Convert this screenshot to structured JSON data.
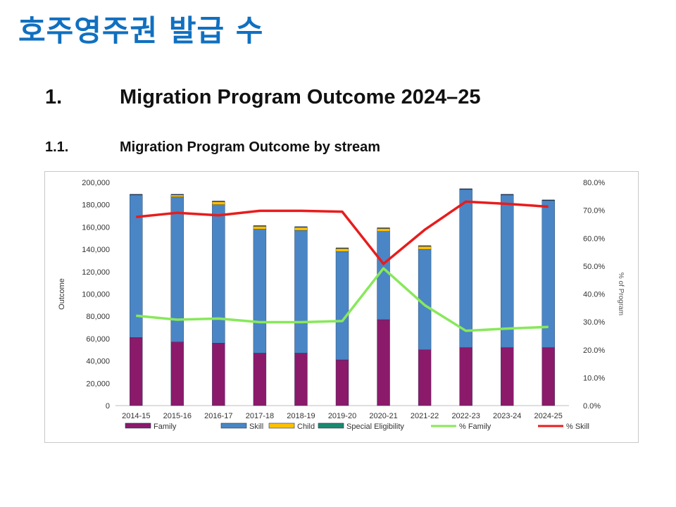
{
  "slide": {
    "title": "호주영주권 발급 수",
    "heading1_num": "1.",
    "heading1_text": "Migration Program Outcome 2024–25",
    "heading2_num": "1.1.",
    "heading2_text": "Migration Program Outcome by stream"
  },
  "chart_data": {
    "type": "bar",
    "stacked": true,
    "title": "Migration Program Outcome by stream",
    "ylabel": "Outcome",
    "y2label": "% of Program",
    "ylim": [
      0,
      200000
    ],
    "y2lim": [
      0,
      80
    ],
    "yticks": [
      "0",
      "20,000",
      "40,000",
      "60,000",
      "80,000",
      "100,000",
      "120,000",
      "140,000",
      "160,000",
      "180,000",
      "200,000"
    ],
    "y2ticks": [
      "0.0%",
      "10.0%",
      "20.0%",
      "30.0%",
      "40.0%",
      "50.0%",
      "60.0%",
      "70.0%",
      "80.0%"
    ],
    "categories": [
      "2014-15",
      "2015-16",
      "2016-17",
      "2017-18",
      "2018-19",
      "2019-20",
      "2020-21",
      "2021-22",
      "2022-23",
      "2023-24",
      "2024-25"
    ],
    "series": [
      {
        "name": "Family",
        "kind": "bar",
        "color": "#8b1a6b",
        "values": [
          61000,
          57000,
          56000,
          47000,
          47000,
          41000,
          77000,
          50000,
          52000,
          52000,
          52000
        ]
      },
      {
        "name": "Skill",
        "kind": "bar",
        "color": "#4a86c5",
        "values": [
          128000,
          130000,
          124000,
          111000,
          110000,
          97000,
          79000,
          90000,
          142000,
          137000,
          132000
        ]
      },
      {
        "name": "Child",
        "kind": "bar",
        "color": "#ffc000",
        "values": [
          0,
          2000,
          3000,
          3000,
          3000,
          3000,
          3000,
          3000,
          0,
          0,
          0
        ]
      },
      {
        "name": "Special Eligibility",
        "kind": "bar",
        "color": "#1a8a6e",
        "values": [
          0,
          0,
          0,
          0,
          0,
          0,
          0,
          0,
          0,
          0,
          0
        ]
      },
      {
        "name": "% Family",
        "kind": "line",
        "axis": "right",
        "color": "#88e85a",
        "values": [
          32.2,
          30.8,
          31.2,
          29.9,
          29.9,
          30.3,
          49.2,
          36.0,
          26.8,
          27.6,
          28.2
        ]
      },
      {
        "name": "% Skill",
        "kind": "line",
        "axis": "right",
        "color": "#e81c1c",
        "values": [
          67.6,
          69.1,
          68.2,
          69.8,
          69.8,
          69.5,
          50.8,
          63.0,
          73.1,
          72.3,
          71.3
        ]
      }
    ],
    "legend": "bottom"
  }
}
